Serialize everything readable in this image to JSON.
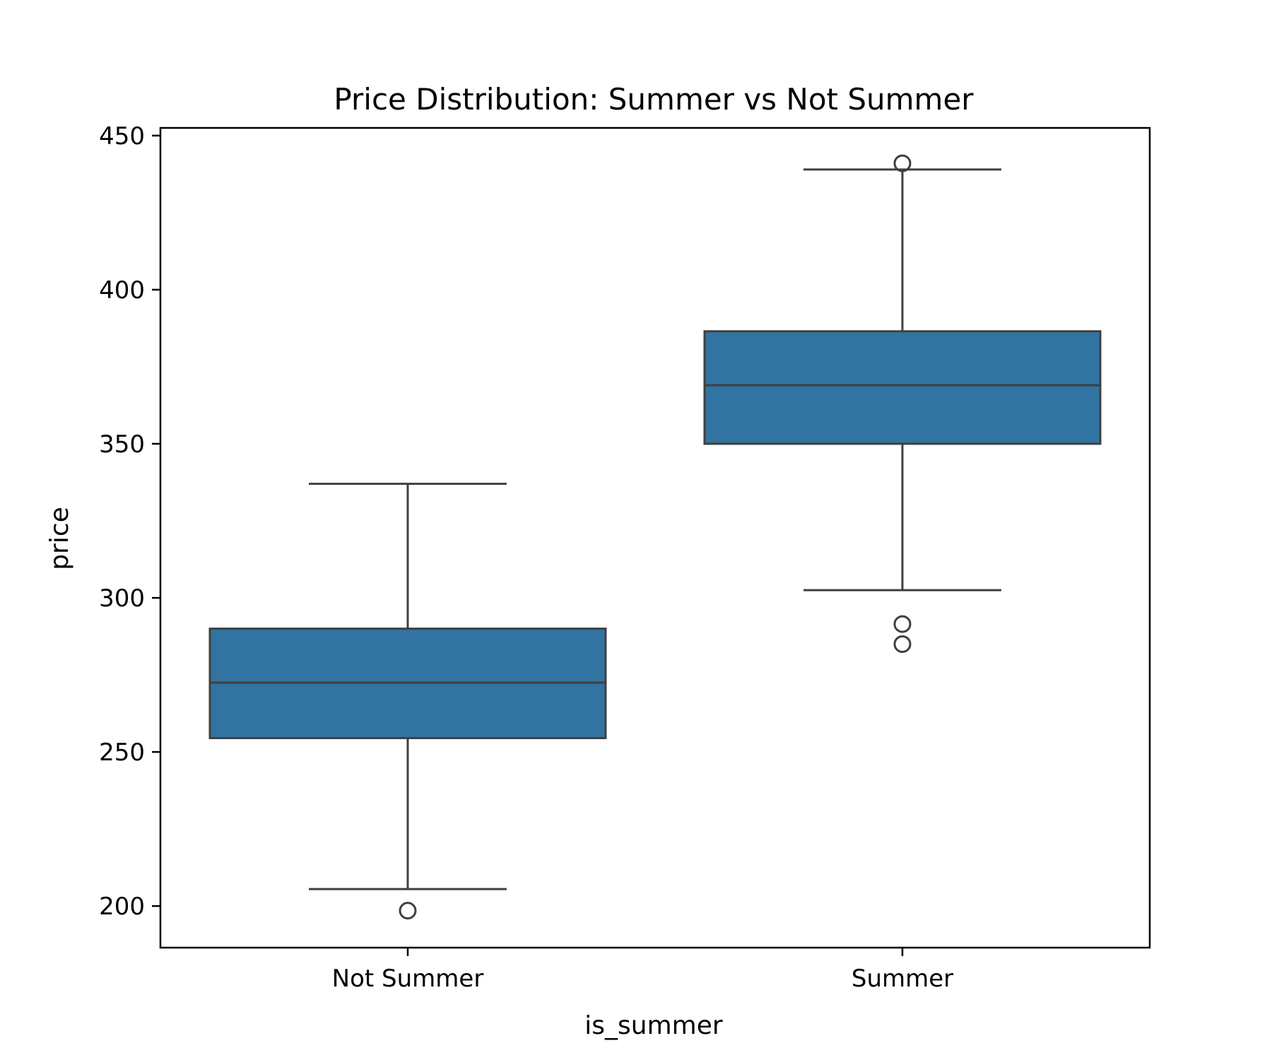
{
  "chart_data": {
    "type": "box",
    "title": "Price Distribution: Summer vs Not Summer",
    "xlabel": "is_summer",
    "ylabel": "price",
    "ylim": [
      186.5,
      452.5
    ],
    "yticks": [
      200,
      250,
      300,
      350,
      400,
      450
    ],
    "categories": [
      "Not Summer",
      "Summer"
    ],
    "series": [
      {
        "category": "Not Summer",
        "whisker_low": 205.5,
        "q1": 254.5,
        "median": 272.5,
        "q3": 290,
        "whisker_high": 337,
        "outliers": [
          198.5
        ]
      },
      {
        "category": "Summer",
        "whisker_low": 302.5,
        "q1": 350,
        "median": 369,
        "q3": 386.5,
        "whisker_high": 439,
        "outliers": [
          441,
          291.5,
          285
        ]
      }
    ],
    "grid": false,
    "legend": "none",
    "colors": {
      "box_fill": "#3274a1",
      "line": "#3f3f3f",
      "axes": "#000000"
    }
  }
}
